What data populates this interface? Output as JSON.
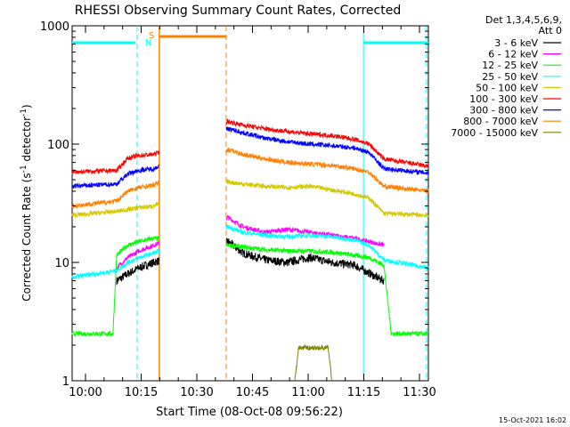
{
  "chart_data": {
    "type": "line",
    "title": "RHESSI Observing Summary Count Rates, Corrected",
    "xlabel": "Start Time (08-Oct-08 09:56:22)",
    "ylabel": "Corrected Count Rate (s",
    "ylabel_sup1": "-1",
    "ylabel_mid": " detector",
    "ylabel_sup2": "-1",
    "ylabel_end": ")",
    "yscale": "log",
    "ylim": [
      1,
      1000
    ],
    "xlim_minutes": [
      0,
      96
    ],
    "x_ticks": [
      {
        "label": "10:00",
        "min": 3.6
      },
      {
        "label": "10:15",
        "min": 18.6
      },
      {
        "label": "10:30",
        "min": 33.6
      },
      {
        "label": "10:45",
        "min": 48.6
      },
      {
        "label": "11:00",
        "min": 63.6
      },
      {
        "label": "11:15",
        "min": 78.6
      },
      {
        "label": "11:30",
        "min": 93.6
      }
    ],
    "y_ticks": [
      {
        "label": "1",
        "v": 1
      },
      {
        "label": "10",
        "v": 10
      },
      {
        "label": "100",
        "v": 100
      },
      {
        "label": "1000",
        "v": 1000
      }
    ],
    "legend_header": [
      "Det 1,3,4,5,6,9,",
      "Att 0"
    ],
    "legend_position": "right",
    "footer": "15-Oct-2021 16:02",
    "flags": {
      "saa_label": "S",
      "night_label": "N",
      "night_color": "#00ffff",
      "saa_color": "#ff8000",
      "night_segments": [
        [
          0,
          17.0
        ],
        [
          78.5,
          96
        ]
      ],
      "saa_segments": [
        [
          23.5,
          41.5
        ]
      ],
      "night_dashed": [
        17.5,
        95.5
      ],
      "night_solid": [
        78.5
      ],
      "saa_dashed": [
        41.5
      ],
      "saa_solid": [
        23.5
      ]
    },
    "gap_minutes": [
      23.5,
      41.5
    ],
    "series": [
      {
        "name": "3 - 6 keV",
        "color": "#000000",
        "values": [
          [
            12.0,
            7.0
          ],
          [
            15.0,
            8.0
          ],
          [
            18.0,
            9.0
          ],
          [
            22.0,
            10.0
          ],
          [
            42.0,
            15.0
          ],
          [
            46.0,
            12.0
          ],
          [
            52.0,
            10.5
          ],
          [
            58.0,
            10.0
          ],
          [
            64.0,
            11.0
          ],
          [
            70.0,
            10.0
          ],
          [
            76.0,
            9.5
          ],
          [
            82.0,
            7.5
          ],
          [
            84.0,
            7.0
          ]
        ]
      },
      {
        "name": "6 - 12 keV",
        "color": "#ff00ff",
        "values": [
          [
            12.0,
            9.0
          ],
          [
            15.0,
            11.0
          ],
          [
            18.0,
            12.5
          ],
          [
            22.0,
            14.0
          ],
          [
            42.0,
            24.0
          ],
          [
            46.0,
            20.0
          ],
          [
            52.0,
            18.0
          ],
          [
            58.0,
            19.0
          ],
          [
            64.0,
            18.0
          ],
          [
            70.0,
            17.0
          ],
          [
            76.0,
            16.0
          ],
          [
            80.0,
            15.0
          ],
          [
            84.0,
            14.0
          ]
        ]
      },
      {
        "name": "12 - 25 keV",
        "color": "#00ff00",
        "values": [
          [
            0.0,
            2.5
          ],
          [
            11.0,
            2.5
          ],
          [
            12.0,
            11.5
          ],
          [
            15.0,
            14.0
          ],
          [
            18.0,
            15.0
          ],
          [
            22.0,
            16.0
          ],
          [
            42.0,
            14.0
          ],
          [
            46.0,
            13.5
          ],
          [
            52.0,
            12.8
          ],
          [
            58.0,
            12.5
          ],
          [
            64.0,
            12.5
          ],
          [
            70.0,
            12.2
          ],
          [
            76.0,
            11.5
          ],
          [
            80.0,
            11.0
          ],
          [
            84.0,
            9.5
          ],
          [
            86.0,
            2.5
          ],
          [
            96.0,
            2.5
          ]
        ]
      },
      {
        "name": "25 - 50 keV",
        "color": "#00ffff",
        "values": [
          [
            0.0,
            7.5
          ],
          [
            12.0,
            8.5
          ],
          [
            15.0,
            10.0
          ],
          [
            18.0,
            11.0
          ],
          [
            22.0,
            12.0
          ],
          [
            42.0,
            20.0
          ],
          [
            46.0,
            18.0
          ],
          [
            52.0,
            17.0
          ],
          [
            58.0,
            16.5
          ],
          [
            64.0,
            17.0
          ],
          [
            70.0,
            16.5
          ],
          [
            76.0,
            15.5
          ],
          [
            80.0,
            14.0
          ],
          [
            84.0,
            10.5
          ],
          [
            96.0,
            9.0
          ]
        ]
      },
      {
        "name": "50 - 100 keV",
        "color": "#d4c800",
        "values": [
          [
            0.0,
            25.0
          ],
          [
            12.0,
            27.0
          ],
          [
            15.0,
            28.0
          ],
          [
            18.0,
            29.0
          ],
          [
            22.0,
            30.0
          ],
          [
            42.0,
            48.0
          ],
          [
            46.0,
            46.0
          ],
          [
            52.0,
            44.0
          ],
          [
            58.0,
            43.0
          ],
          [
            64.0,
            44.0
          ],
          [
            70.0,
            41.0
          ],
          [
            76.0,
            38.0
          ],
          [
            80.0,
            35.0
          ],
          [
            84.0,
            26.0
          ],
          [
            96.0,
            25.0
          ]
        ]
      },
      {
        "name": "100 - 300 keV",
        "color": "#ff0000",
        "values": [
          [
            0.0,
            58.0
          ],
          [
            12.0,
            60.0
          ],
          [
            15.0,
            76.0
          ],
          [
            18.0,
            80.0
          ],
          [
            22.0,
            82.0
          ],
          [
            42.0,
            155.0
          ],
          [
            46.0,
            145.0
          ],
          [
            52.0,
            135.0
          ],
          [
            58.0,
            128.0
          ],
          [
            64.0,
            122.0
          ],
          [
            70.0,
            118.0
          ],
          [
            76.0,
            110.0
          ],
          [
            80.0,
            100.0
          ],
          [
            84.0,
            75.0
          ],
          [
            96.0,
            65.0
          ]
        ]
      },
      {
        "name": "300 - 800 keV",
        "color": "#0000ff",
        "values": [
          [
            0.0,
            44.0
          ],
          [
            12.0,
            46.0
          ],
          [
            15.0,
            56.0
          ],
          [
            18.0,
            60.0
          ],
          [
            22.0,
            62.0
          ],
          [
            42.0,
            135.0
          ],
          [
            46.0,
            125.0
          ],
          [
            52.0,
            112.0
          ],
          [
            58.0,
            105.0
          ],
          [
            64.0,
            100.0
          ],
          [
            70.0,
            97.0
          ],
          [
            76.0,
            93.0
          ],
          [
            80.0,
            85.0
          ],
          [
            84.0,
            62.0
          ],
          [
            96.0,
            57.0
          ]
        ]
      },
      {
        "name": "800 - 7000 keV",
        "color": "#ff8000",
        "values": [
          [
            0.0,
            30.0
          ],
          [
            12.0,
            33.0
          ],
          [
            15.0,
            40.0
          ],
          [
            18.0,
            43.0
          ],
          [
            22.0,
            45.0
          ],
          [
            42.0,
            90.0
          ],
          [
            46.0,
            82.0
          ],
          [
            52.0,
            75.0
          ],
          [
            58.0,
            70.0
          ],
          [
            64.0,
            68.0
          ],
          [
            70.0,
            66.0
          ],
          [
            76.0,
            62.0
          ],
          [
            80.0,
            58.0
          ],
          [
            84.0,
            44.0
          ],
          [
            96.0,
            40.0
          ]
        ]
      },
      {
        "name": "7000 - 15000 keV",
        "color": "#808000",
        "values": [
          [
            60.0,
            1.0
          ],
          [
            61.0,
            1.9
          ],
          [
            69.0,
            1.9
          ],
          [
            70.0,
            1.0
          ]
        ]
      }
    ]
  }
}
